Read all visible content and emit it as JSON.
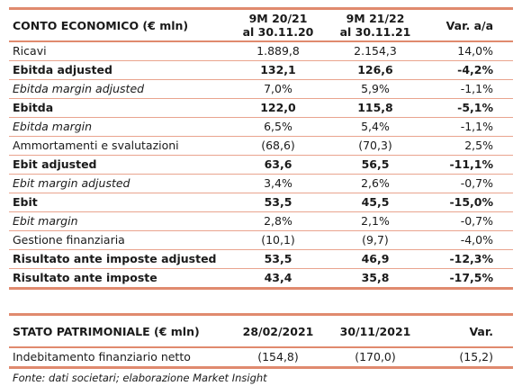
{
  "conto": {
    "title": "CONTO ECONOMICO (€ mln)",
    "col1": [
      "9M 20/21",
      "al 30.11.20"
    ],
    "col2": [
      "9M 21/22",
      "al 30.11.21"
    ],
    "col3": "Var. a/a",
    "rows": [
      {
        "label": "Ricavi",
        "v1": "1.889,8",
        "v2": "2.154,3",
        "v3": "14,0%"
      },
      {
        "label": "Ebitda adjusted",
        "v1": "132,1",
        "v2": "126,6",
        "v3": "-4,2%"
      },
      {
        "label": "Ebitda margin adjusted",
        "v1": "7,0%",
        "v2": "5,9%",
        "v3": "-1,1%"
      },
      {
        "label": "Ebitda",
        "v1": "122,0",
        "v2": "115,8",
        "v3": "-5,1%"
      },
      {
        "label": "Ebitda margin",
        "v1": "6,5%",
        "v2": "5,4%",
        "v3": "-1,1%"
      },
      {
        "label": "Ammortamenti e svalutazioni",
        "v1": "(68,6)",
        "v2": "(70,3)",
        "v3": "2,5%"
      },
      {
        "label": "Ebit adjusted",
        "v1": "63,6",
        "v2": "56,5",
        "v3": "-11,1%"
      },
      {
        "label": "Ebit margin adjusted",
        "v1": "3,4%",
        "v2": "2,6%",
        "v3": "-0,7%"
      },
      {
        "label": "Ebit",
        "v1": "53,5",
        "v2": "45,5",
        "v3": "-15,0%"
      },
      {
        "label": "Ebit margin",
        "v1": "2,8%",
        "v2": "2,1%",
        "v3": "-0,7%"
      },
      {
        "label": "Gestione finanziaria",
        "v1": "(10,1)",
        "v2": "(9,7)",
        "v3": "-4,0%"
      },
      {
        "label": "Risultato ante imposte adjusted",
        "v1": "53,5",
        "v2": "46,9",
        "v3": "-12,3%"
      },
      {
        "label": "Risultato ante imposte",
        "v1": "43,4",
        "v2": "35,8",
        "v3": "-17,5%"
      }
    ]
  },
  "stato": {
    "title": "STATO PATRIMONIALE (€ mln)",
    "col1": "28/02/2021",
    "col2": "30/11/2021",
    "col3": "Var.",
    "rows": [
      {
        "label": "Indebitamento finanziario netto",
        "v1": "(154,8)",
        "v2": "(170,0)",
        "v3": "(15,2)"
      }
    ]
  },
  "footnote": "Fonte: dati societari; elaborazione Market Insight"
}
